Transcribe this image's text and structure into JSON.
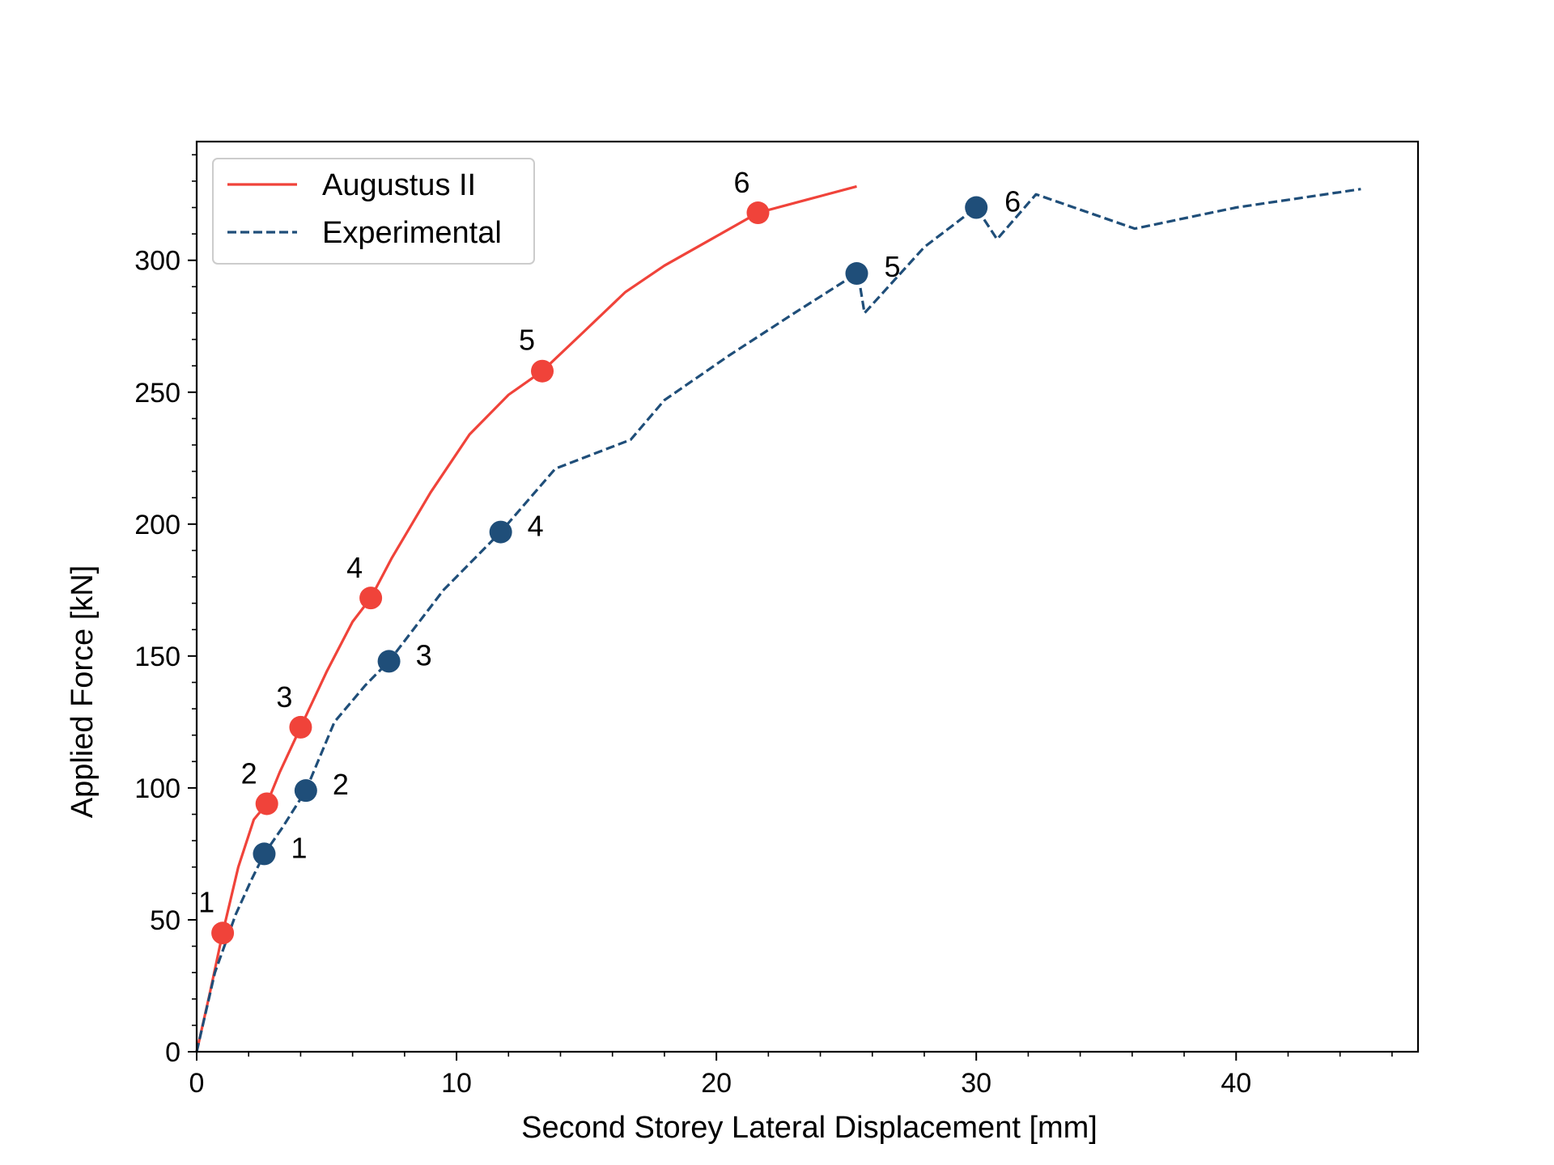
{
  "chart_data": {
    "type": "line",
    "xlabel": "Second Storey Lateral Displacement [mm]",
    "ylabel": "Applied Force [kN]",
    "xlim": [
      0,
      47
    ],
    "ylim": [
      0,
      345
    ],
    "x_ticks": [
      0,
      10,
      20,
      30,
      40
    ],
    "y_ticks": [
      0,
      50,
      100,
      150,
      200,
      250,
      300
    ],
    "grid": false,
    "legend_position": "top-left",
    "series": [
      {
        "name": "Augustus II",
        "color": "#f0433a",
        "style": "solid",
        "x": [
          0,
          0.5,
          1.0,
          1.6,
          2.2,
          2.7,
          3.2,
          4.0,
          5.0,
          6.0,
          6.7,
          7.5,
          9.0,
          10.5,
          12.0,
          13.3,
          14.8,
          16.5,
          18.0,
          19.8,
          21.6,
          23.5,
          25.4
        ],
        "y": [
          0,
          22,
          45,
          70,
          88,
          94,
          106,
          123,
          144,
          163,
          172,
          187,
          212,
          234,
          249,
          258,
          272,
          288,
          298,
          308,
          318,
          323,
          328
        ]
      },
      {
        "name": "Experimental",
        "color": "#1f4e79",
        "style": "dashed",
        "x": [
          0,
          0.7,
          1.5,
          2.1,
          2.6,
          3.3,
          4.2,
          5.3,
          6.5,
          7.4,
          9.5,
          11.7,
          13.8,
          16.7,
          18.0,
          20.5,
          23.0,
          25.4,
          25.5,
          25.7,
          28.0,
          30.0,
          30.8,
          32.3,
          36.1,
          40.0,
          44.8
        ],
        "y": [
          0,
          30,
          52,
          65,
          75,
          85,
          99,
          125,
          139,
          148,
          175,
          197,
          221,
          232,
          247,
          264,
          280,
          295,
          292,
          280,
          305,
          320,
          308,
          325,
          312,
          320,
          327
        ]
      }
    ],
    "markers": [
      {
        "series": "Augustus II",
        "color": "#f0433a",
        "points": [
          {
            "label": "1",
            "x": 1.0,
            "y": 45
          },
          {
            "label": "2",
            "x": 2.7,
            "y": 94
          },
          {
            "label": "3",
            "x": 4.0,
            "y": 123
          },
          {
            "label": "4",
            "x": 6.7,
            "y": 172
          },
          {
            "label": "5",
            "x": 13.3,
            "y": 258
          },
          {
            "label": "6",
            "x": 21.6,
            "y": 318
          }
        ]
      },
      {
        "series": "Experimental",
        "color": "#1f4e79",
        "points": [
          {
            "label": "1",
            "x": 2.6,
            "y": 75
          },
          {
            "label": "2",
            "x": 4.2,
            "y": 99
          },
          {
            "label": "3",
            "x": 7.4,
            "y": 148
          },
          {
            "label": "4",
            "x": 11.7,
            "y": 197
          },
          {
            "label": "5",
            "x": 25.4,
            "y": 295
          },
          {
            "label": "6",
            "x": 30.0,
            "y": 320
          }
        ]
      }
    ]
  }
}
